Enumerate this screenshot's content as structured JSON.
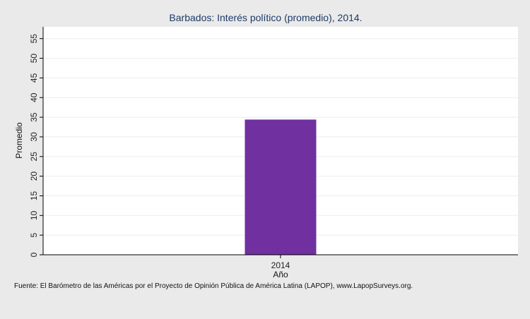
{
  "chart_data": {
    "type": "bar",
    "title": "Barbados: Interés político (promedio), 2014.",
    "xlabel": "Año",
    "ylabel": "Promedio",
    "categories": [
      "2014"
    ],
    "values": [
      34.4
    ],
    "ylim": [
      0,
      58
    ],
    "yticks": [
      0,
      5,
      10,
      15,
      20,
      25,
      30,
      35,
      40,
      45,
      50,
      55
    ],
    "grid": true,
    "bar_color": "#7030a0"
  },
  "source": "Fuente: El Barómetro de las Américas por el Proyecto de Opinión Pública de América Latina (LAPOP), www.LapopSurveys.org."
}
